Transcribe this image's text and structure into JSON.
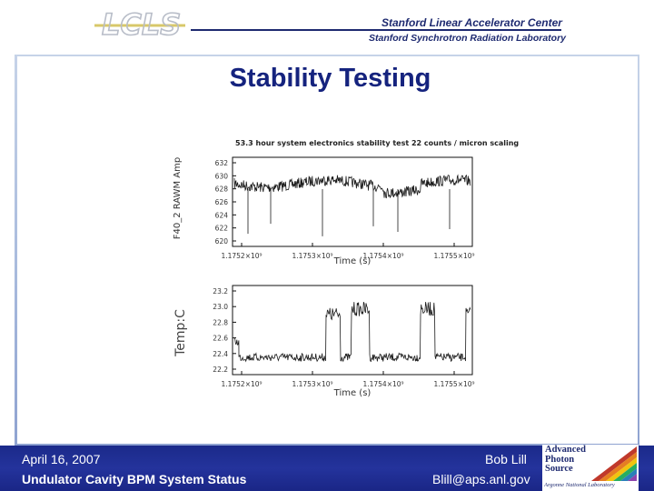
{
  "header": {
    "logo_text": "LCLS",
    "lab_name": "Stanford Linear Accelerator Center",
    "lab_subname": "Stanford Synchrotron Radiation Laboratory"
  },
  "slide": {
    "title": "Stability Testing"
  },
  "figure": {
    "caption": "53.3 hour system electronics stability test 22 counts / micron scaling",
    "top": {
      "ylabel": "F40_2 RAWM Amp",
      "xlabel": "Time (s)",
      "yticks": [
        "632",
        "630",
        "628",
        "626",
        "624",
        "622",
        "620"
      ],
      "xticks": [
        "1.1752×10⁹",
        "1.1753×10⁹",
        "1.1754×10⁹",
        "1.1755×10⁹"
      ]
    },
    "bottom": {
      "ylabel": "Temp:C",
      "xlabel": "Time (s)",
      "yticks": [
        "23.2",
        "23.0",
        "22.8",
        "22.6",
        "22.4",
        "22.2"
      ],
      "xticks": [
        "1.1752×10⁹",
        "1.1753×10⁹",
        "1.1754×10⁹",
        "1.1755×10⁹"
      ]
    }
  },
  "footer": {
    "date": "April 16, 2007",
    "status": "Undulator Cavity BPM System Status",
    "author": "Bob Lill",
    "email": "Blill@aps.anl.gov"
  },
  "aps_logo": {
    "line1": "Advanced",
    "line2": "Photon",
    "line3": "Source",
    "sub": "Argonne National Laboratory"
  }
}
